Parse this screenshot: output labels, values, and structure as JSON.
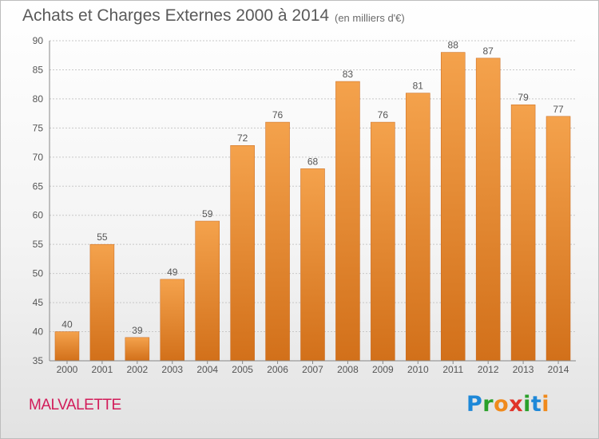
{
  "title": "Achats et Charges Externes 2000 à 2014",
  "subtitle": "(en milliers d'€)",
  "place": "MALVALETTE",
  "logo": {
    "letters": [
      "P",
      "r",
      "o",
      "x",
      "i",
      "t",
      "i"
    ],
    "colors": [
      "#1e88d8",
      "#2aa02a",
      "#f08a1c",
      "#e0342a",
      "#2aa02a",
      "#1e88d8",
      "#f08a1c"
    ]
  },
  "colors": {
    "bar_top": "#f4a24c",
    "bar_bottom": "#d2701a",
    "title": "#5a5a5a",
    "place": "#d21c5a"
  },
  "chart_data": {
    "type": "bar",
    "title": "Achats et Charges Externes 2000 à 2014",
    "subtitle": "(en milliers d'€)",
    "categories": [
      "2000",
      "2001",
      "2002",
      "2003",
      "2004",
      "2005",
      "2006",
      "2007",
      "2008",
      "2009",
      "2010",
      "2011",
      "2012",
      "2013",
      "2014"
    ],
    "values": [
      40,
      55,
      39,
      49,
      59,
      72,
      76,
      68,
      83,
      76,
      81,
      88,
      87,
      79,
      77
    ],
    "ylim": [
      35,
      90
    ],
    "yticks": [
      35,
      40,
      45,
      50,
      55,
      60,
      65,
      70,
      75,
      80,
      85,
      90
    ],
    "grid": true,
    "data_labels": true,
    "xlabel": "",
    "ylabel": ""
  }
}
